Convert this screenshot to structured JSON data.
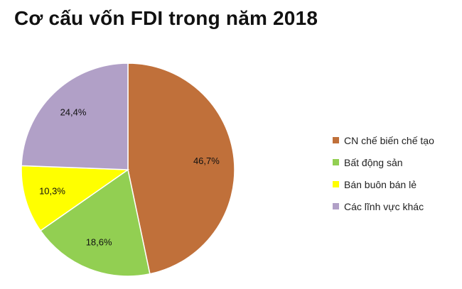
{
  "chart_data": {
    "type": "pie",
    "title": "Cơ cấu vốn FDI trong năm 2018",
    "legend_position": "right",
    "start_angle_deg": 0,
    "direction": "clockwise",
    "slices": [
      {
        "label": "CN chế biến chế tạo",
        "value": 46.7,
        "value_label": "46,7%",
        "color": "#C0703A"
      },
      {
        "label": "Bất động sản",
        "value": 18.6,
        "value_label": "18,6%",
        "color": "#92CF52"
      },
      {
        "label": "Bán buôn bán lẻ",
        "value": 10.3,
        "value_label": "10,3%",
        "color": "#FFFF00"
      },
      {
        "label": "Các lĩnh vực khác",
        "value": 24.4,
        "value_label": "24,4%",
        "color": "#B1A0C7"
      }
    ]
  }
}
